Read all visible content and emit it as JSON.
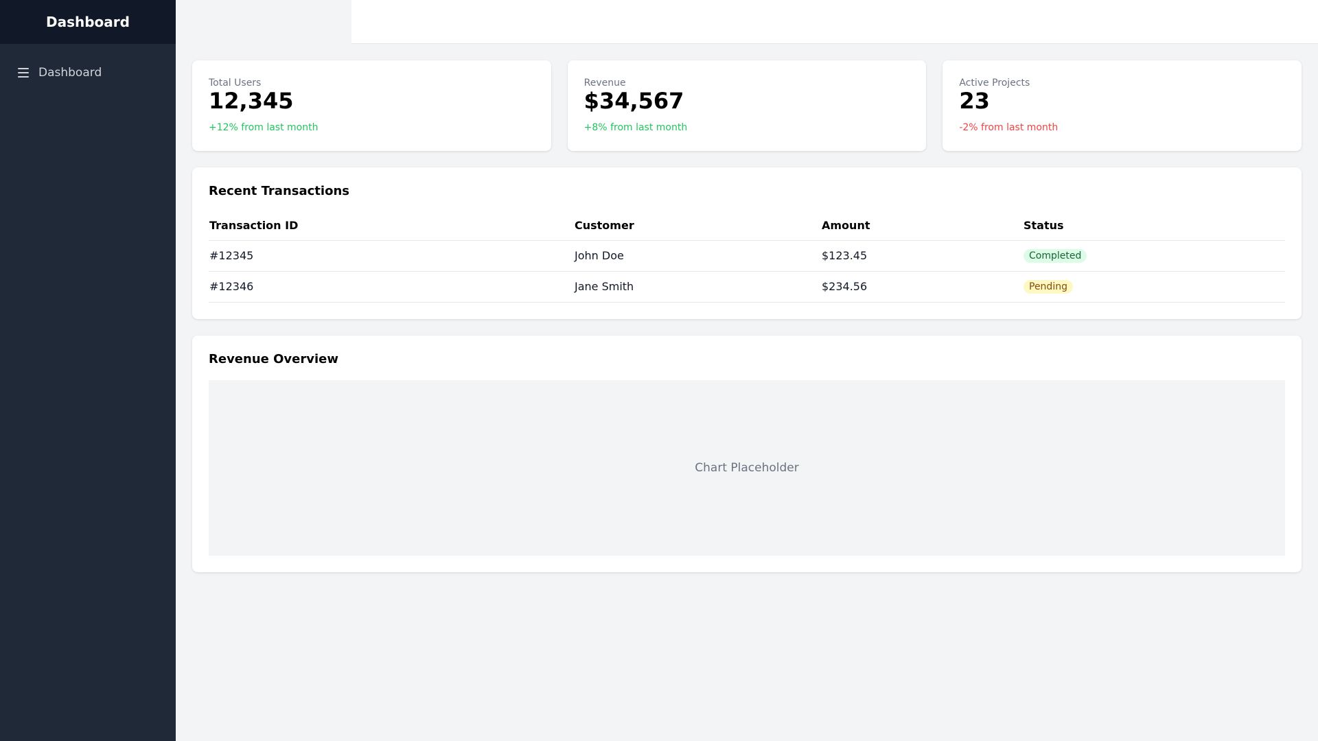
{
  "sidebar": {
    "title": "Dashboard",
    "items": [
      {
        "label": "Dashboard",
        "icon": "menu-icon"
      }
    ]
  },
  "stats": [
    {
      "label": "Total Users",
      "value": "12,345",
      "change": "+12% from last month",
      "trend": "up"
    },
    {
      "label": "Revenue",
      "value": "$34,567",
      "change": "+8% from last month",
      "trend": "up"
    },
    {
      "label": "Active Projects",
      "value": "23",
      "change": "-2% from last month",
      "trend": "down"
    }
  ],
  "transactions": {
    "title": "Recent Transactions",
    "columns": [
      "Transaction ID",
      "Customer",
      "Amount",
      "Status"
    ],
    "rows": [
      {
        "id": "#12345",
        "customer": "John Doe",
        "amount": "$123.45",
        "status": "Completed"
      },
      {
        "id": "#12346",
        "customer": "Jane Smith",
        "amount": "$234.56",
        "status": "Pending"
      }
    ]
  },
  "revenue_overview": {
    "title": "Revenue Overview",
    "placeholder": "Chart Placeholder"
  },
  "colors": {
    "sidebar_bg": "#1f2937",
    "sidebar_header_bg": "#111827",
    "positive": "#22c55e",
    "negative": "#ef4444",
    "completed_badge_bg": "#dcfce7",
    "pending_badge_bg": "#fef9c3"
  }
}
